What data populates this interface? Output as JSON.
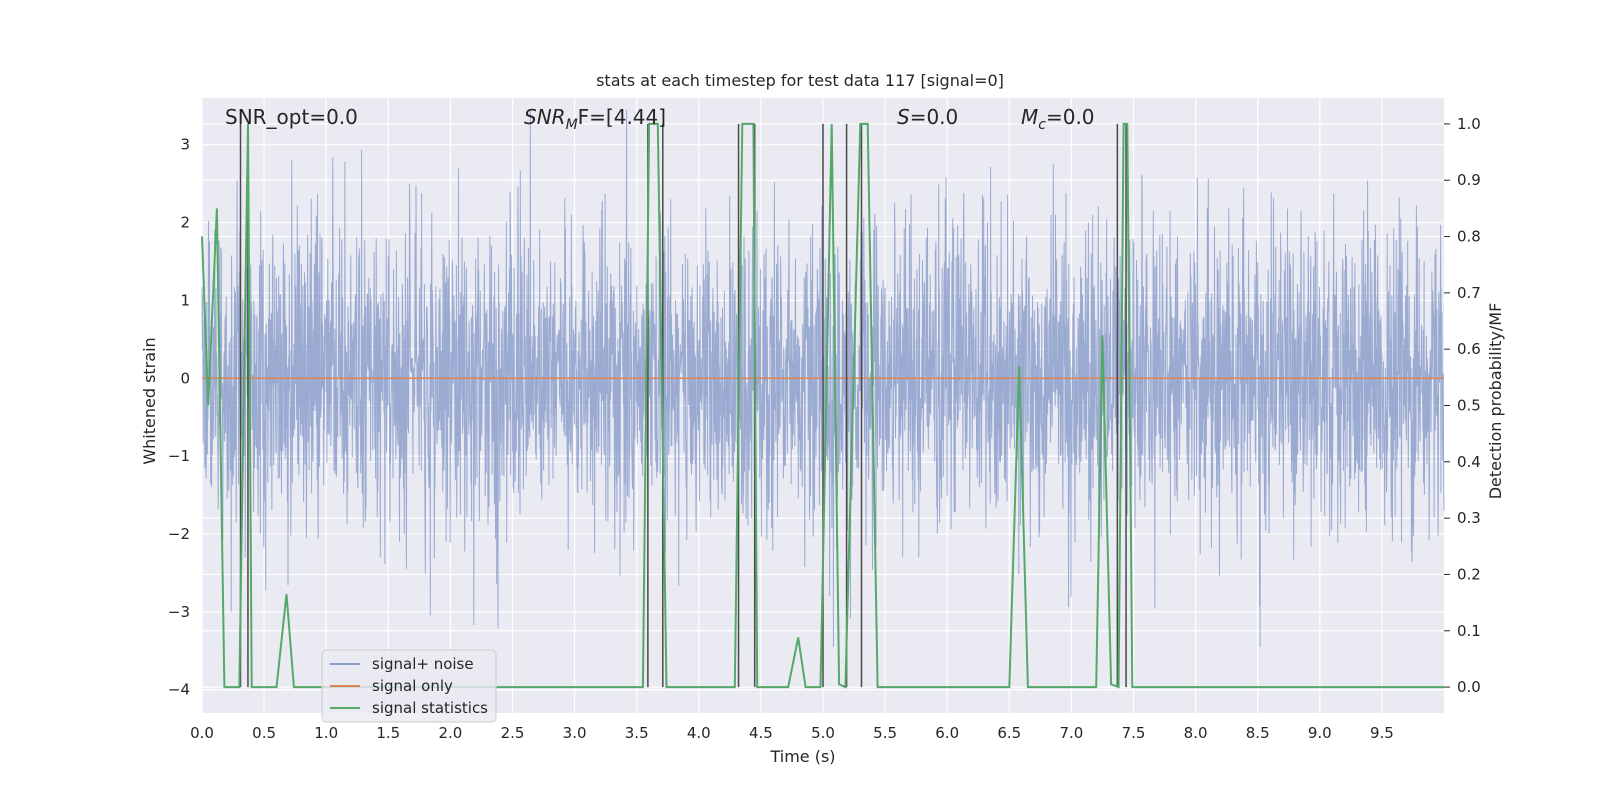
{
  "chart_data": {
    "type": "line",
    "title": "stats at each timestep for test data 117 [signal=0]",
    "xlabel": "Time (s)",
    "ylabel_left": "Whitened strain",
    "ylabel_right": "Detection probability/MF",
    "xlim": [
      0.0,
      10.0
    ],
    "ylim_left": [
      -4.3,
      3.6
    ],
    "ylim_right": [
      -0.046,
      1.046
    ],
    "xticks": [
      0.0,
      0.5,
      1.0,
      1.5,
      2.0,
      2.5,
      3.0,
      3.5,
      4.0,
      4.5,
      5.0,
      5.5,
      6.0,
      6.5,
      7.0,
      7.5,
      8.0,
      8.5,
      9.0,
      9.5
    ],
    "xtick_labels": [
      "0.0",
      "0.5",
      "1.0",
      "1.5",
      "2.0",
      "2.5",
      "3.0",
      "3.5",
      "4.0",
      "4.5",
      "5.0",
      "5.5",
      "6.0",
      "6.5",
      "7.0",
      "7.5",
      "8.0",
      "8.5",
      "9.0",
      "9.5"
    ],
    "yticks_left": [
      3,
      2,
      1,
      0,
      -1,
      -2,
      -3,
      -4
    ],
    "ytick_labels_left": [
      "3",
      "2",
      "1",
      "0",
      "−1",
      "−2",
      "−3",
      "−4"
    ],
    "yticks_right": [
      1.0,
      0.9,
      0.8,
      0.7,
      0.6,
      0.5,
      0.4,
      0.3,
      0.2,
      0.1,
      0.0
    ],
    "ytick_labels_right": [
      "1.0",
      "0.9",
      "0.8",
      "0.7",
      "0.6",
      "0.5",
      "0.4",
      "0.3",
      "0.2",
      "0.1",
      "0.0"
    ],
    "grid": true,
    "legend_position": "lower-left",
    "series": [
      {
        "name": "signal+ noise",
        "axis": "left",
        "color": "#8c9fcb",
        "description": "whitened strain noise, approx std 1, range about -3.4 to 3.4",
        "noise_std": 0.95,
        "noise_clip": [
          -3.45,
          3.45
        ]
      },
      {
        "name": "signal only",
        "axis": "left",
        "color": "#dd8452",
        "x": [
          0.0,
          10.0
        ],
        "y": [
          0.0,
          0.0
        ]
      },
      {
        "name": "signal statistics",
        "axis": "right",
        "color": "#55a868",
        "x": [
          0.0,
          0.05,
          0.12,
          0.18,
          0.3,
          0.37,
          0.4,
          0.44,
          0.6,
          0.68,
          0.74,
          3.55,
          3.6,
          3.67,
          3.74,
          4.29,
          4.35,
          4.44,
          4.47,
          4.72,
          4.8,
          4.86,
          4.98,
          5.07,
          5.13,
          5.18,
          5.3,
          5.36,
          5.44,
          6.5,
          6.58,
          6.65,
          7.2,
          7.25,
          7.32,
          7.38,
          7.42,
          7.45,
          7.49,
          10.0
        ],
        "y": [
          0.8,
          0.5,
          0.85,
          0.0,
          0.0,
          1.0,
          0.0,
          0.0,
          0.0,
          0.165,
          0.0,
          0.0,
          1.0,
          1.0,
          0.0,
          0.0,
          1.0,
          1.0,
          0.0,
          0.0,
          0.088,
          0.0,
          0.0,
          1.0,
          0.005,
          0.0,
          1.0,
          1.0,
          0.0,
          0.0,
          0.57,
          0.0,
          0.0,
          0.625,
          0.005,
          0.0,
          1.0,
          1.0,
          0.0,
          0.0
        ]
      }
    ],
    "vlines": {
      "color": "#4a4a4a",
      "axis": "right",
      "y_range": [
        0.0,
        1.0
      ],
      "x": [
        0.31,
        0.37,
        3.59,
        3.71,
        4.32,
        4.45,
        5.0,
        5.19,
        5.31,
        7.37,
        7.44
      ]
    },
    "annotations": [
      {
        "text": "SNR_opt=0.0",
        "x": 0.19,
        "y": 1.0
      },
      {
        "text": "SNR_MF=[4.44]",
        "x": 2.6,
        "y": 1.0
      },
      {
        "text": "S=0.0",
        "x": 5.6,
        "y": 1.0
      },
      {
        "text": "M_c=0.0",
        "x": 6.6,
        "y": 1.0
      }
    ]
  },
  "annotation_text": {
    "snr_opt": "SNR_opt=0.0",
    "snr_mf_main": "SNR",
    "snr_mf_sub": "M",
    "snr_mf_rest": "F=[4.44]",
    "s_main": "S",
    "s_rest": "=0.0",
    "mc_main": "M",
    "mc_sub": "c",
    "mc_rest": "=0.0"
  },
  "colors": {
    "plot_background": "#eaeaf2",
    "grid": "#ffffff",
    "vline": "#4a4a4a"
  }
}
